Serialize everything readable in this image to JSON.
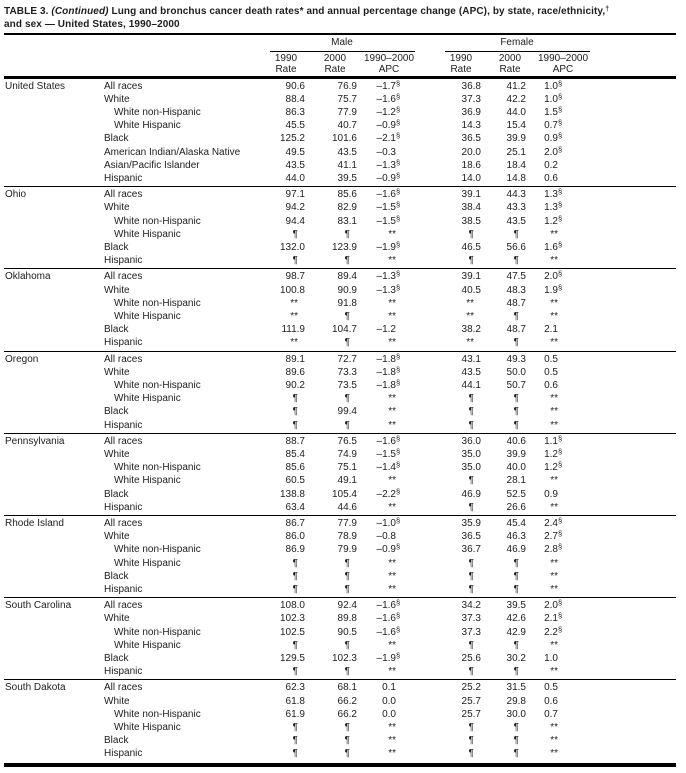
{
  "title": {
    "label": "TABLE 3.",
    "continued": "(Continued)",
    "line1_rest": " Lung and bronchus cancer death rates* and annual percentage change (APC), by state, race/ethnicity,",
    "line1_sup": "†",
    "line2": "and sex — United States, 1990–2000"
  },
  "header": {
    "male_label": "Male",
    "female_label": "Female",
    "cols": [
      {
        "l1": "1990",
        "l2": "Rate"
      },
      {
        "l1": "2000",
        "l2": "Rate"
      },
      {
        "l1": "1990–2000",
        "l2": "APC"
      },
      {
        "l1": "1990",
        "l2": "Rate"
      },
      {
        "l1": "2000",
        "l2": "Rate"
      },
      {
        "l1": "1990–2000",
        "l2": "APC"
      }
    ]
  },
  "states": [
    {
      "name": "United States",
      "rows": [
        {
          "label": "All races",
          "indent": 0,
          "cells": [
            "90.6",
            "76.9",
            "–1.7§",
            "36.8",
            "41.2",
            "1.0§"
          ]
        },
        {
          "label": "White",
          "indent": 0,
          "cells": [
            "88.4",
            "75.7",
            "–1.6§",
            "37.3",
            "42.2",
            "1.0§"
          ]
        },
        {
          "label": "White non-Hispanic",
          "indent": 1,
          "cells": [
            "86.3",
            "77.9",
            "–1.2§",
            "36.9",
            "44.0",
            "1.5§"
          ]
        },
        {
          "label": "White Hispanic",
          "indent": 1,
          "cells": [
            "45.5",
            "40.7",
            "–0.9§",
            "14.3",
            "15.4",
            "0.7§"
          ]
        },
        {
          "label": "Black",
          "indent": 0,
          "cells": [
            "125.2",
            "101.6",
            "–2.1§",
            "36.5",
            "39.9",
            "0.9§"
          ]
        },
        {
          "label": "American Indian/Alaska Native",
          "indent": 0,
          "cells": [
            "49.5",
            "43.5",
            "–0.3",
            "20.0",
            "25.1",
            "2.0§"
          ]
        },
        {
          "label": "Asian/Pacific Islander",
          "indent": 0,
          "cells": [
            "43.5",
            "41.1",
            "–1.3§",
            "18.6",
            "18.4",
            "0.2"
          ]
        },
        {
          "label": "Hispanic",
          "indent": 0,
          "cells": [
            "44.0",
            "39.5",
            "–0.9§",
            "14.0",
            "14.8",
            "0.6"
          ]
        }
      ]
    },
    {
      "name": "Ohio",
      "rows": [
        {
          "label": "All races",
          "indent": 0,
          "cells": [
            "97.1",
            "85.6",
            "–1.6§",
            "39.1",
            "44.3",
            "1.3§"
          ]
        },
        {
          "label": "White",
          "indent": 0,
          "cells": [
            "94.2",
            "82.9",
            "–1.5§",
            "38.4",
            "43.3",
            "1.3§"
          ]
        },
        {
          "label": "White non-Hispanic",
          "indent": 1,
          "cells": [
            "94.4",
            "83.1",
            "–1.5§",
            "38.5",
            "43.5",
            "1.2§"
          ]
        },
        {
          "label": "White Hispanic",
          "indent": 1,
          "cells": [
            "¶",
            "¶",
            "**",
            "¶",
            "¶",
            "**"
          ]
        },
        {
          "label": "Black",
          "indent": 0,
          "cells": [
            "132.0",
            "123.9",
            "–1.9§",
            "46.5",
            "56.6",
            "1.6§"
          ]
        },
        {
          "label": "Hispanic",
          "indent": 0,
          "cells": [
            "¶",
            "¶",
            "**",
            "¶",
            "¶",
            "**"
          ]
        }
      ]
    },
    {
      "name": "Oklahoma",
      "rows": [
        {
          "label": "All races",
          "indent": 0,
          "cells": [
            "98.7",
            "89.4",
            "–1.3§",
            "39.1",
            "47.5",
            "2.0§"
          ]
        },
        {
          "label": "White",
          "indent": 0,
          "cells": [
            "100.8",
            "90.9",
            "–1.3§",
            "40.5",
            "48.3",
            "1.9§"
          ]
        },
        {
          "label": "White non-Hispanic",
          "indent": 1,
          "cells": [
            "**",
            "91.8",
            "**",
            "**",
            "48.7",
            "**"
          ]
        },
        {
          "label": "White Hispanic",
          "indent": 1,
          "cells": [
            "**",
            "¶",
            "**",
            "**",
            "¶",
            "**"
          ]
        },
        {
          "label": "Black",
          "indent": 0,
          "cells": [
            "111.9",
            "104.7",
            "–1.2",
            "38.2",
            "48.7",
            "2.1"
          ]
        },
        {
          "label": "Hispanic",
          "indent": 0,
          "cells": [
            "**",
            "¶",
            "**",
            "**",
            "¶",
            "**"
          ]
        }
      ]
    },
    {
      "name": "Oregon",
      "rows": [
        {
          "label": "All races",
          "indent": 0,
          "cells": [
            "89.1",
            "72.7",
            "–1.8§",
            "43.1",
            "49.3",
            "0.5"
          ]
        },
        {
          "label": "White",
          "indent": 0,
          "cells": [
            "89.6",
            "73.3",
            "–1.8§",
            "43.5",
            "50.0",
            "0.5"
          ]
        },
        {
          "label": "White non-Hispanic",
          "indent": 1,
          "cells": [
            "90.2",
            "73.5",
            "–1.8§",
            "44.1",
            "50.7",
            "0.6"
          ]
        },
        {
          "label": "White Hispanic",
          "indent": 1,
          "cells": [
            "¶",
            "¶",
            "**",
            "¶",
            "¶",
            "**"
          ]
        },
        {
          "label": "Black",
          "indent": 0,
          "cells": [
            "¶",
            "99.4",
            "**",
            "¶",
            "¶",
            "**"
          ]
        },
        {
          "label": "Hispanic",
          "indent": 0,
          "cells": [
            "¶",
            "¶",
            "**",
            "¶",
            "¶",
            "**"
          ]
        }
      ]
    },
    {
      "name": "Pennsylvania",
      "rows": [
        {
          "label": "All races",
          "indent": 0,
          "cells": [
            "88.7",
            "76.5",
            "–1.6§",
            "36.0",
            "40.6",
            "1.1§"
          ]
        },
        {
          "label": "White",
          "indent": 0,
          "cells": [
            "85.4",
            "74.9",
            "–1.5§",
            "35.0",
            "39.9",
            "1.2§"
          ]
        },
        {
          "label": "White non-Hispanic",
          "indent": 1,
          "cells": [
            "85.6",
            "75.1",
            "–1.4§",
            "35.0",
            "40.0",
            "1.2§"
          ]
        },
        {
          "label": "White Hispanic",
          "indent": 1,
          "cells": [
            "60.5",
            "49.1",
            "**",
            "¶",
            "28.1",
            "**"
          ]
        },
        {
          "label": "Black",
          "indent": 0,
          "cells": [
            "138.8",
            "105.4",
            "–2.2§",
            "46.9",
            "52.5",
            "0.9"
          ]
        },
        {
          "label": "Hispanic",
          "indent": 0,
          "cells": [
            "63.4",
            "44.6",
            "**",
            "¶",
            "26.6",
            "**"
          ]
        }
      ]
    },
    {
      "name": "Rhode Island",
      "rows": [
        {
          "label": "All races",
          "indent": 0,
          "cells": [
            "86.7",
            "77.9",
            "–1.0§",
            "35.9",
            "45.4",
            "2.4§"
          ]
        },
        {
          "label": "White",
          "indent": 0,
          "cells": [
            "86.0",
            "78.9",
            "–0.8",
            "36.5",
            "46.3",
            "2.7§"
          ]
        },
        {
          "label": "White non-Hispanic",
          "indent": 1,
          "cells": [
            "86.9",
            "79.9",
            "–0.9§",
            "36.7",
            "46.9",
            "2.8§"
          ]
        },
        {
          "label": "White Hispanic",
          "indent": 1,
          "cells": [
            "¶",
            "¶",
            "**",
            "¶",
            "¶",
            "**"
          ]
        },
        {
          "label": "Black",
          "indent": 0,
          "cells": [
            "¶",
            "¶",
            "**",
            "¶",
            "¶",
            "**"
          ]
        },
        {
          "label": "Hispanic",
          "indent": 0,
          "cells": [
            "¶",
            "¶",
            "**",
            "¶",
            "¶",
            "**"
          ]
        }
      ]
    },
    {
      "name": "South Carolina",
      "rows": [
        {
          "label": "All races",
          "indent": 0,
          "cells": [
            "108.0",
            "92.4",
            "–1.6§",
            "34.2",
            "39.5",
            "2.0§"
          ]
        },
        {
          "label": "White",
          "indent": 0,
          "cells": [
            "102.3",
            "89.8",
            "–1.6§",
            "37.3",
            "42.6",
            "2.1§"
          ]
        },
        {
          "label": "White non-Hispanic",
          "indent": 1,
          "cells": [
            "102.5",
            "90.5",
            "–1.6§",
            "37.3",
            "42.9",
            "2.2§"
          ]
        },
        {
          "label": "White Hispanic",
          "indent": 1,
          "cells": [
            "¶",
            "¶",
            "**",
            "¶",
            "¶",
            "**"
          ]
        },
        {
          "label": "Black",
          "indent": 0,
          "cells": [
            "129.5",
            "102.3",
            "–1.9§",
            "25.6",
            "30.2",
            "1.0"
          ]
        },
        {
          "label": "Hispanic",
          "indent": 0,
          "cells": [
            "¶",
            "¶",
            "**",
            "¶",
            "¶",
            "**"
          ]
        }
      ]
    },
    {
      "name": "South Dakota",
      "rows": [
        {
          "label": "All races",
          "indent": 0,
          "cells": [
            "62.3",
            "68.1",
            "0.1",
            "25.2",
            "31.5",
            "0.5"
          ]
        },
        {
          "label": "White",
          "indent": 0,
          "cells": [
            "61.8",
            "66.2",
            "0.0",
            "25.7",
            "29.8",
            "0.6"
          ]
        },
        {
          "label": "White non-Hispanic",
          "indent": 1,
          "cells": [
            "61.9",
            "66.2",
            "0.0",
            "25.7",
            "30.0",
            "0.7"
          ]
        },
        {
          "label": "White Hispanic",
          "indent": 1,
          "cells": [
            "¶",
            "¶",
            "**",
            "¶",
            "¶",
            "**"
          ]
        },
        {
          "label": "Black",
          "indent": 0,
          "cells": [
            "¶",
            "¶",
            "**",
            "¶",
            "¶",
            "**"
          ]
        },
        {
          "label": "Hispanic",
          "indent": 0,
          "cells": [
            "¶",
            "¶",
            "**",
            "¶",
            "¶",
            "**"
          ]
        }
      ]
    }
  ]
}
